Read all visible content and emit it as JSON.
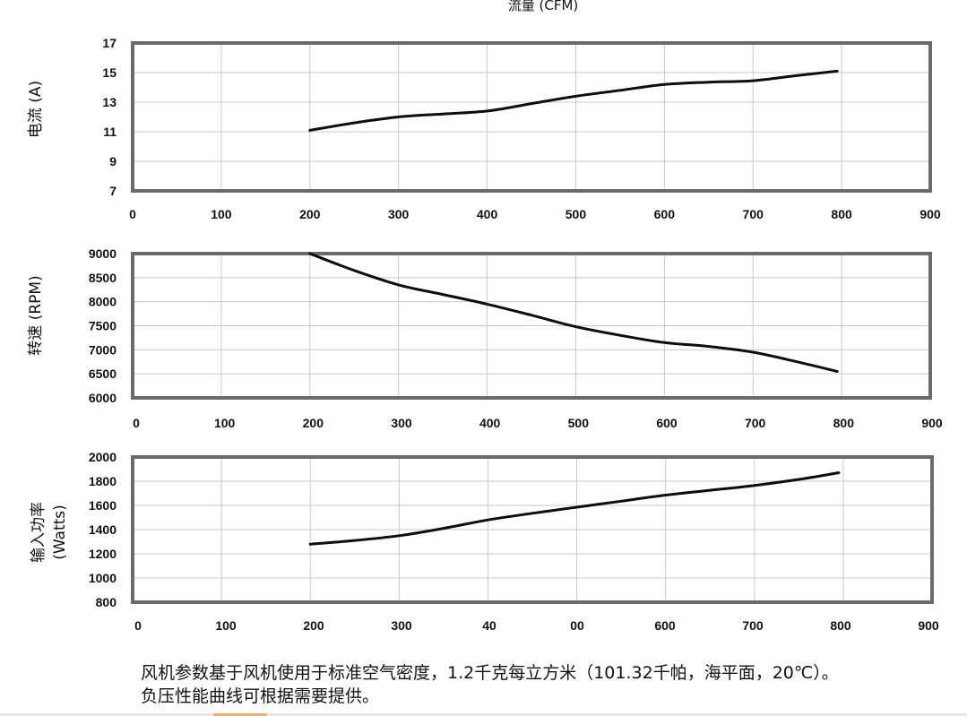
{
  "top_label": "流量 (CFM)",
  "chart_data": [
    {
      "type": "line",
      "ylabel": "电流 (A)",
      "x_ticks": [
        "0",
        "100",
        "200",
        "300",
        "400",
        "500",
        "600",
        "700",
        "800",
        "900"
      ],
      "y_ticks": [
        "7",
        "9",
        "11",
        "13",
        "15",
        "17"
      ],
      "xlim": [
        0,
        900
      ],
      "ylim": [
        7,
        17
      ],
      "grid": true,
      "series": [
        {
          "x": [
            200,
            250,
            300,
            350,
            400,
            450,
            500,
            550,
            600,
            650,
            700,
            750,
            795
          ],
          "y": [
            11.1,
            11.6,
            12.0,
            12.2,
            12.4,
            12.9,
            13.4,
            13.8,
            14.2,
            14.35,
            14.45,
            14.8,
            15.1
          ]
        }
      ]
    },
    {
      "type": "line",
      "ylabel": "转速 (RPM)",
      "x_ticks": [
        "0",
        "100",
        "200",
        "300",
        "400",
        "500",
        "600",
        "700",
        "800",
        "900"
      ],
      "y_ticks": [
        "6000",
        "6500",
        "7000",
        "7500",
        "8000",
        "8500",
        "9000"
      ],
      "xlim": [
        0,
        900
      ],
      "ylim": [
        6000,
        9000
      ],
      "grid": true,
      "series": [
        {
          "x": [
            200,
            250,
            300,
            350,
            400,
            450,
            500,
            550,
            600,
            650,
            700,
            750,
            795
          ],
          "y": [
            9000,
            8650,
            8350,
            8150,
            7950,
            7720,
            7480,
            7300,
            7150,
            7070,
            6950,
            6750,
            6550
          ]
        }
      ]
    },
    {
      "type": "line",
      "ylabel": "输入功率",
      "ylabel2": "(Watts)",
      "x_ticks": [
        "0",
        "100",
        "200",
        "300",
        "40",
        "00",
        "600",
        "700",
        "800",
        "900"
      ],
      "y_ticks": [
        "800",
        "1000",
        "1200",
        "1400",
        "1600",
        "1800",
        "2000"
      ],
      "xlim": [
        0,
        900
      ],
      "ylim": [
        800,
        2000
      ],
      "grid": true,
      "series": [
        {
          "x": [
            200,
            250,
            300,
            350,
            400,
            450,
            500,
            550,
            600,
            650,
            700,
            750,
            795
          ],
          "y": [
            1280,
            1310,
            1350,
            1410,
            1480,
            1535,
            1585,
            1635,
            1685,
            1725,
            1765,
            1815,
            1870
          ]
        }
      ]
    }
  ],
  "note_line1": "风机参数基于风机使用于标准空气密度，1.2千克每立方米（101.32千帕，海平面，20℃）。",
  "note_line2": "负压性能曲线可根据需要提供。"
}
